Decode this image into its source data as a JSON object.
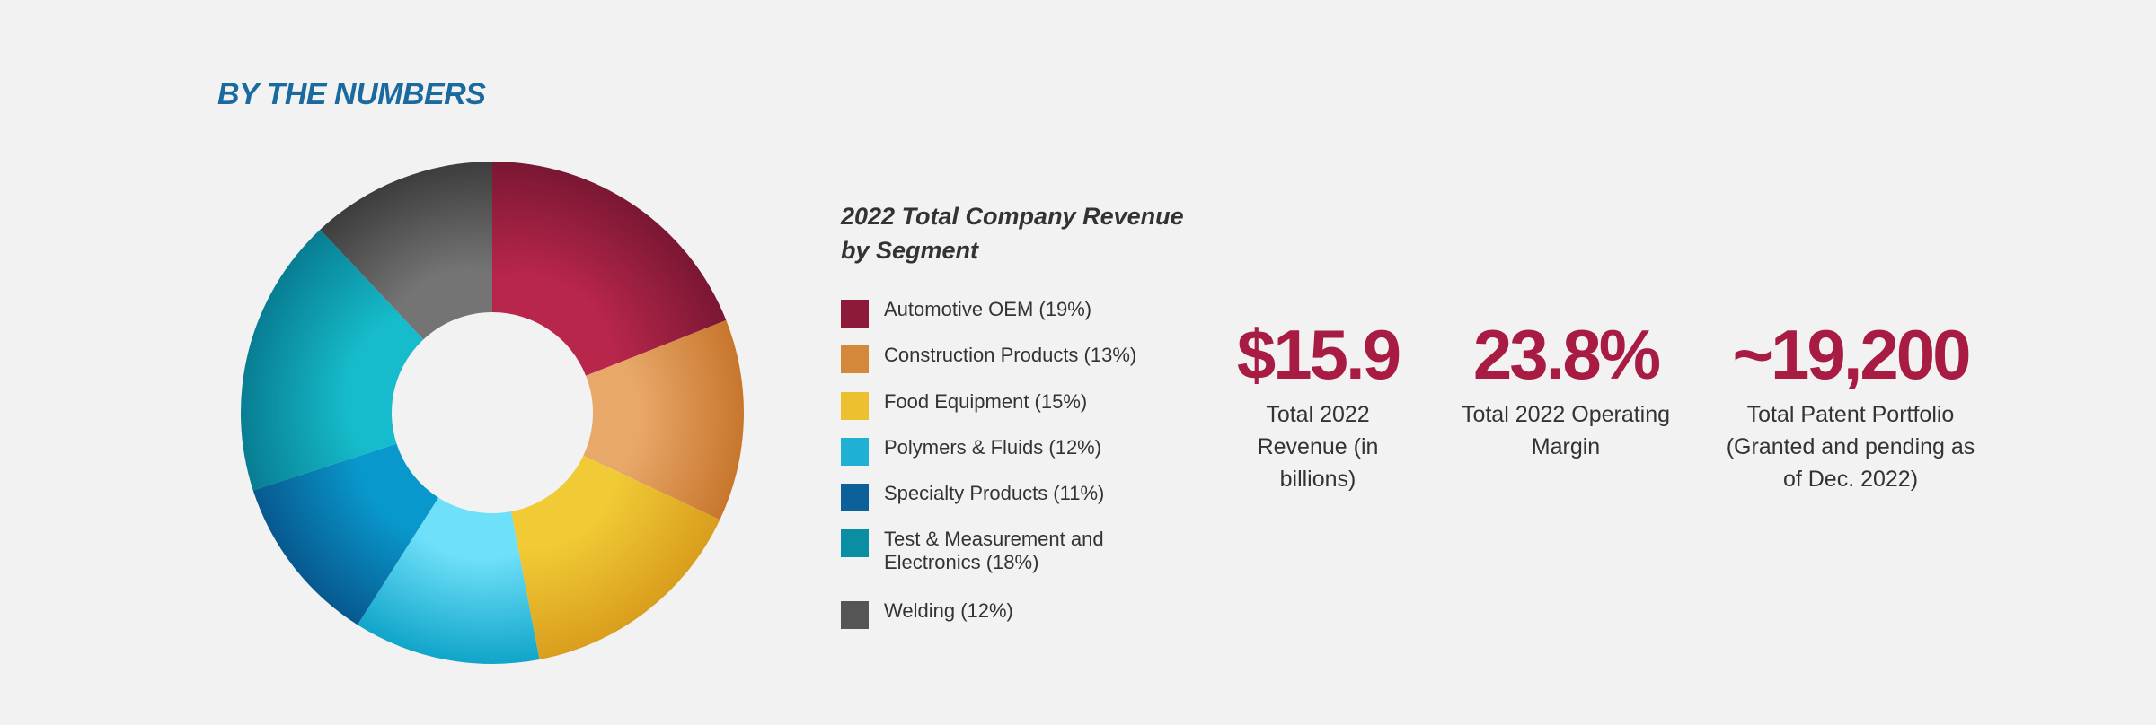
{
  "header": {
    "title": "BY THE NUMBERS"
  },
  "chart_data": {
    "type": "pie",
    "style": "donut",
    "title_line1": "2022 Total Company Revenue",
    "title_line2": "by Segment",
    "categories": [
      "Automotive OEM",
      "Construction Products",
      "Food Equipment",
      "Polymers & Fluids",
      "Specialty Products",
      "Test & Measurement and Electronics",
      "Welding"
    ],
    "values": [
      19,
      13,
      15,
      12,
      11,
      18,
      12
    ],
    "unit": "%",
    "slice_order_clockwise_from_top": [
      "Automotive OEM",
      "Construction Products",
      "Food Equipment",
      "Polymers & Fluids",
      "Specialty Products",
      "Test & Measurement and Electronics",
      "Welding"
    ],
    "legend": [
      {
        "label": "Automotive OEM (19%)",
        "color": "#8c1a38"
      },
      {
        "label": "Construction Products (13%)",
        "color": "#d4893a"
      },
      {
        "label": "Food Equipment (15%)",
        "color": "#ecc02e"
      },
      {
        "label": "Polymers & Fluids (12%)",
        "color": "#1fb0d4"
      },
      {
        "label": "Specialty Products (11%)",
        "color": "#0d619a"
      },
      {
        "label": "Test & Measurement and Electronics (18%)",
        "color": "#0a8ea3"
      },
      {
        "label": "Welding (12%)",
        "color": "#555555"
      }
    ],
    "slice_colors": [
      {
        "inner": "#b8264b",
        "outer": "#7a1733"
      },
      {
        "inner": "#e8a86a",
        "outer": "#c8762c"
      },
      {
        "inner": "#f1cb36",
        "outer": "#d99e1d"
      },
      {
        "inner": "#6fe0f9",
        "outer": "#10a5c9"
      },
      {
        "inner": "#0998cc",
        "outer": "#07598f"
      },
      {
        "inner": "#16bccb",
        "outer": "#087d92"
      },
      {
        "inner": "#747474",
        "outer": "#3d3d3d"
      }
    ]
  },
  "stats": [
    {
      "value": "$15.9",
      "label": "Total 2022 Revenue (in billions)"
    },
    {
      "value": "23.8%",
      "label": "Total 2022 Operating Margin"
    },
    {
      "value": "~19,200",
      "label": "Total Patent Portfolio (Granted and pending as of Dec. 2022)"
    }
  ]
}
